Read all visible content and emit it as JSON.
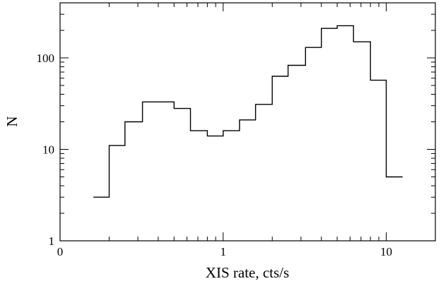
{
  "chart_data": {
    "type": "histogram",
    "title": "",
    "xlabel": "XIS rate, cts/s",
    "ylabel": "N",
    "x_scale": "log",
    "y_scale": "log",
    "xlim": [
      0.1,
      20
    ],
    "ylim": [
      1,
      400
    ],
    "x_ticks": [
      {
        "value": 0.1,
        "label": "0"
      },
      {
        "value": 1,
        "label": "1"
      },
      {
        "value": 10,
        "label": "10"
      }
    ],
    "y_ticks": [
      {
        "value": 1,
        "label": "1"
      },
      {
        "value": 10,
        "label": "10"
      },
      {
        "value": 100,
        "label": "100"
      }
    ],
    "bin_edges": [
      0.16,
      0.2,
      0.25,
      0.32,
      0.4,
      0.5,
      0.63,
      0.8,
      1.0,
      1.26,
      1.58,
      2.0,
      2.5,
      3.2,
      4.0,
      5.0,
      6.3,
      8.0,
      10.0,
      12.6
    ],
    "counts": [
      3,
      11,
      20,
      33,
      33,
      28,
      16,
      14,
      16,
      21,
      31,
      63,
      83,
      130,
      210,
      225,
      150,
      57,
      5
    ],
    "grid": false,
    "legend": "none"
  }
}
